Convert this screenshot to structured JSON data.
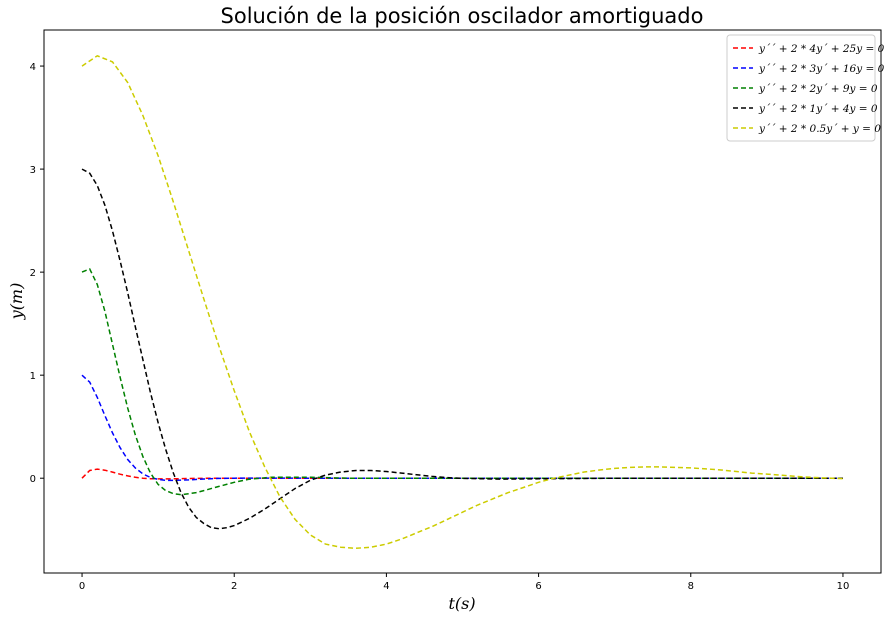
{
  "chart_data": {
    "type": "line",
    "title": "Solución de la posición oscilador amortiguado",
    "xlabel": "t(s)",
    "ylabel": "y(m)",
    "xlim": [
      -0.5,
      10.5
    ],
    "ylim": [
      -0.92,
      4.35
    ],
    "xticks": [
      0,
      2,
      4,
      6,
      8,
      10
    ],
    "yticks": [
      0,
      1,
      2,
      3,
      4
    ],
    "grid": false,
    "legend_position": "top-right",
    "line_style": "dashed",
    "series": [
      {
        "name": "y´´ + 2 * 4y´ + 25y = 0",
        "color": "#ff0000",
        "x": [
          0,
          0.1,
          0.2,
          0.3,
          0.4,
          0.5,
          0.6,
          0.7,
          0.8,
          0.9,
          1.0,
          1.2,
          1.4,
          1.6,
          1.8,
          2.0,
          2.5,
          3.0,
          4.0,
          5.0,
          6.0,
          7.0,
          8.0,
          9.0,
          10.0
        ],
        "y": [
          0,
          0.075,
          0.088,
          0.078,
          0.059,
          0.039,
          0.022,
          0.009,
          0.0,
          -0.005,
          -0.007,
          -0.006,
          -0.003,
          -0.001,
          0.0,
          0.0,
          0.0,
          0.0,
          0.0,
          0.0,
          0.0,
          0.0,
          0.0,
          0.0,
          0.0
        ]
      },
      {
        "name": "y´´ + 2 * 3y´ + 16y = 0",
        "color": "#0000ff",
        "x": [
          0,
          0.1,
          0.2,
          0.3,
          0.4,
          0.5,
          0.6,
          0.7,
          0.8,
          0.9,
          1.0,
          1.1,
          1.2,
          1.4,
          1.6,
          1.8,
          2.0,
          2.2,
          2.5,
          3.0,
          4.0,
          5.0,
          6.0,
          7.0,
          8.0,
          9.0,
          10.0
        ],
        "y": [
          1.0,
          0.933,
          0.784,
          0.608,
          0.44,
          0.296,
          0.182,
          0.099,
          0.042,
          0.007,
          -0.012,
          -0.02,
          -0.021,
          -0.016,
          -0.008,
          -0.002,
          0.0,
          0.001,
          0.001,
          0.0,
          0.0,
          0.0,
          0.0,
          0.0,
          0.0,
          0.0,
          0.0
        ]
      },
      {
        "name": "y´´ + 2 * 2y´ + 9y = 0",
        "color": "#008000",
        "x": [
          0,
          0.1,
          0.2,
          0.3,
          0.4,
          0.5,
          0.6,
          0.7,
          0.8,
          0.9,
          1.0,
          1.1,
          1.2,
          1.3,
          1.4,
          1.5,
          1.6,
          1.8,
          2.0,
          2.2,
          2.5,
          2.8,
          3.0,
          3.5,
          4.0,
          5.0,
          6.0,
          7.0,
          8.0,
          9.0,
          10.0
        ],
        "y": [
          2.0,
          2.03,
          1.88,
          1.62,
          1.3,
          0.98,
          0.68,
          0.42,
          0.21,
          0.05,
          -0.06,
          -0.12,
          -0.15,
          -0.16,
          -0.15,
          -0.14,
          -0.12,
          -0.08,
          -0.04,
          -0.01,
          0.01,
          0.01,
          0.01,
          0.0,
          0.0,
          0.0,
          0.0,
          0.0,
          0.0,
          0.0,
          0.0
        ]
      },
      {
        "name": "y´´ + 2 * 1y´ + 4y = 0",
        "color": "#000000",
        "x": [
          0,
          0.1,
          0.2,
          0.3,
          0.4,
          0.5,
          0.6,
          0.7,
          0.8,
          0.9,
          1.0,
          1.1,
          1.2,
          1.3,
          1.4,
          1.5,
          1.6,
          1.7,
          1.8,
          1.9,
          2.0,
          2.2,
          2.4,
          2.6,
          2.8,
          3.0,
          3.2,
          3.4,
          3.6,
          3.8,
          4.0,
          4.2,
          4.4,
          4.6,
          4.8,
          5.0,
          5.5,
          6.0,
          7.0,
          8.0,
          9.0,
          10.0
        ],
        "y": [
          3.0,
          2.96,
          2.84,
          2.65,
          2.4,
          2.11,
          1.8,
          1.47,
          1.15,
          0.83,
          0.54,
          0.28,
          0.05,
          -0.14,
          -0.28,
          -0.38,
          -0.44,
          -0.48,
          -0.49,
          -0.48,
          -0.46,
          -0.39,
          -0.3,
          -0.2,
          -0.1,
          -0.02,
          0.03,
          0.06,
          0.075,
          0.075,
          0.065,
          0.05,
          0.033,
          0.018,
          0.006,
          -0.002,
          -0.009,
          -0.006,
          0.0,
          0.0,
          0.0,
          0.0
        ]
      },
      {
        "name": "y´´ + 2 * 0.5y´ + y = 0",
        "color": "#cccc00",
        "x": [
          0,
          0.2,
          0.4,
          0.6,
          0.8,
          1.0,
          1.2,
          1.4,
          1.6,
          1.8,
          2.0,
          2.2,
          2.4,
          2.6,
          2.8,
          3.0,
          3.2,
          3.4,
          3.6,
          3.8,
          4.0,
          4.2,
          4.4,
          4.6,
          4.8,
          5.0,
          5.2,
          5.4,
          5.6,
          5.8,
          6.0,
          6.2,
          6.4,
          6.6,
          6.8,
          7.0,
          7.2,
          7.4,
          7.6,
          7.8,
          8.0,
          8.2,
          8.4,
          8.6,
          8.8,
          9.0,
          9.2,
          9.4,
          9.6,
          9.8,
          10.0
        ],
        "y": [
          4.0,
          4.1,
          4.04,
          3.84,
          3.52,
          3.13,
          2.68,
          2.21,
          1.74,
          1.28,
          0.85,
          0.45,
          0.11,
          -0.18,
          -0.4,
          -0.55,
          -0.64,
          -0.67,
          -0.68,
          -0.67,
          -0.64,
          -0.59,
          -0.53,
          -0.47,
          -0.4,
          -0.33,
          -0.26,
          -0.2,
          -0.14,
          -0.09,
          -0.04,
          0.0,
          0.03,
          0.06,
          0.08,
          0.095,
          0.105,
          0.11,
          0.11,
          0.105,
          0.1,
          0.09,
          0.08,
          0.065,
          0.05,
          0.04,
          0.028,
          0.017,
          0.008,
          0.001,
          -0.005
        ]
      }
    ]
  }
}
